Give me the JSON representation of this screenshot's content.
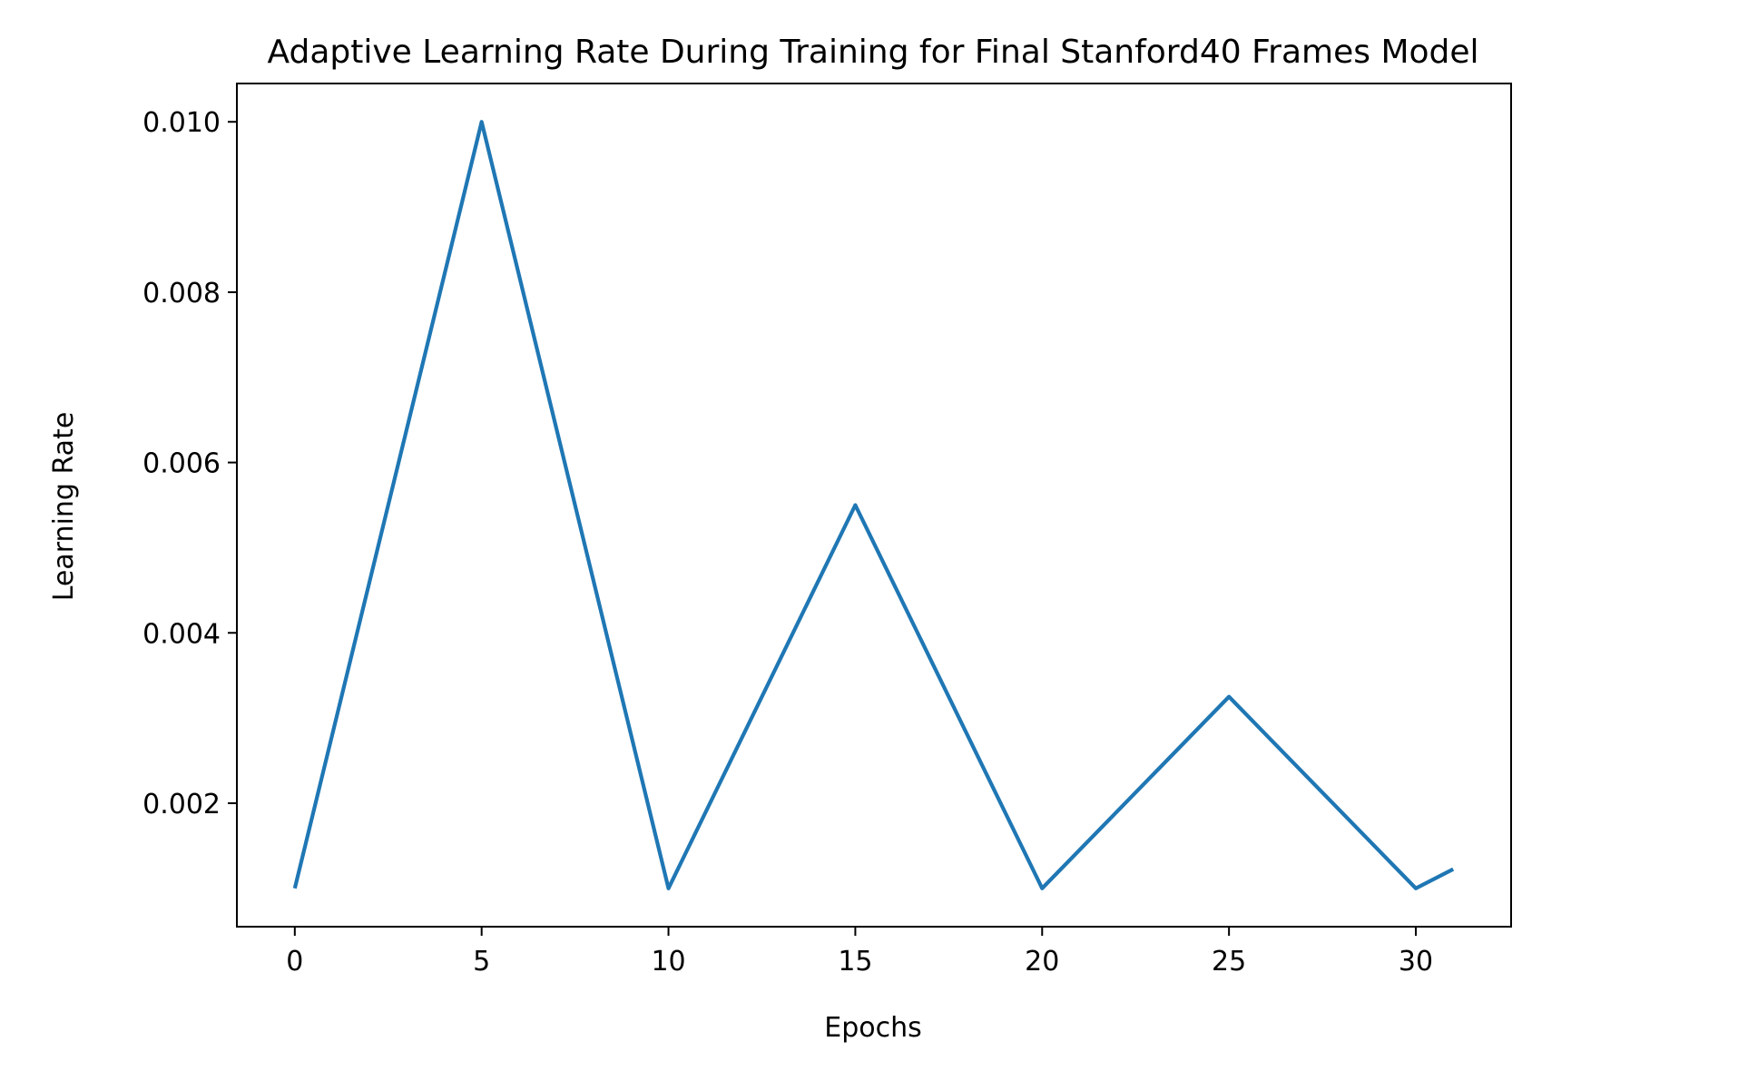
{
  "chart_data": {
    "type": "line",
    "title": "Adaptive Learning Rate During Training for Final Stanford40 Frames Model",
    "xlabel": "Epochs",
    "ylabel": "Learning Rate",
    "xlim": [
      -1.55,
      32.55
    ],
    "ylim": [
      0.00055,
      0.01045
    ],
    "xticks": [
      0,
      5,
      10,
      15,
      20,
      25,
      30
    ],
    "xtick_labels": [
      "0",
      "5",
      "10",
      "15",
      "20",
      "25",
      "30"
    ],
    "yticks": [
      0.002,
      0.004,
      0.006,
      0.008,
      0.01
    ],
    "ytick_labels": [
      "0.002",
      "0.004",
      "0.006",
      "0.008",
      "0.010"
    ],
    "grid": false,
    "legend": "none",
    "series": [
      {
        "color": "#1f77b4",
        "x": [
          0,
          5,
          10,
          15,
          20,
          25,
          30,
          31
        ],
        "y": [
          0.001,
          0.01,
          0.001,
          0.0055,
          0.001,
          0.00325,
          0.001,
          0.001225
        ]
      }
    ]
  }
}
